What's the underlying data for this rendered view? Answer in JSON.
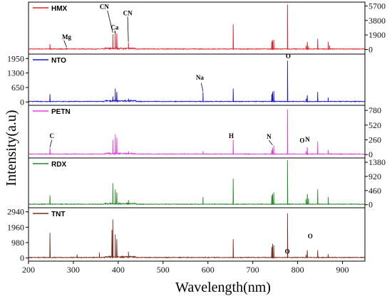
{
  "chart_data": {
    "type": "line",
    "x_label": "Wavelength(nm)",
    "y_label": "Intensity(a.u)",
    "x_range": [
      200,
      950
    ],
    "x_ticks": [
      200,
      300,
      400,
      500,
      600,
      700,
      800,
      900
    ],
    "grid": false,
    "panels": [
      {
        "name": "HMX",
        "color": "#e8202a",
        "y_range": [
          -600,
          6200
        ],
        "y_ticks": [
          0,
          1900,
          3800,
          5700
        ],
        "tick_side": "right",
        "annotations": [
          {
            "text": "Mg",
            "x": 285,
            "y": 1350
          },
          {
            "text": "CN",
            "x": 369,
            "y": 5300
          },
          {
            "text": "Ca",
            "x": 392,
            "y": 2600
          },
          {
            "text": "CN",
            "x": 421,
            "y": 4500
          }
        ],
        "peaks": [
          [
            247.8,
            700
          ],
          [
            285.2,
            200
          ],
          [
            388,
            2000
          ],
          [
            393.4,
            2500
          ],
          [
            396.8,
            2100
          ],
          [
            422.7,
            900
          ],
          [
            656.3,
            3300
          ],
          [
            742.4,
            1100
          ],
          [
            744.2,
            1200
          ],
          [
            746.8,
            1300
          ],
          [
            777.4,
            5900
          ],
          [
            818.8,
            500
          ],
          [
            821.6,
            1000
          ],
          [
            824.2,
            400
          ],
          [
            844.6,
            1400
          ],
          [
            868.0,
            1000
          ],
          [
            871.2,
            500
          ]
        ]
      },
      {
        "name": "NTO",
        "color": "#1818c8",
        "y_range": [
          -150,
          2150
        ],
        "y_ticks": [
          0,
          650,
          1300,
          1950
        ],
        "tick_side": "left",
        "annotations": [
          {
            "text": "Na",
            "x": 582,
            "y": 1000
          },
          {
            "text": "O",
            "x": 779,
            "y": 1960
          }
        ],
        "peaks": [
          [
            247.8,
            350
          ],
          [
            388,
            250
          ],
          [
            393.4,
            600
          ],
          [
            396.8,
            450
          ],
          [
            422.7,
            150
          ],
          [
            589.0,
            450
          ],
          [
            656.3,
            600
          ],
          [
            742.4,
            350
          ],
          [
            744.2,
            450
          ],
          [
            746.8,
            500
          ],
          [
            777.4,
            1850
          ],
          [
            818.8,
            150
          ],
          [
            821.6,
            300
          ],
          [
            844.6,
            450
          ],
          [
            868.0,
            200
          ]
        ]
      },
      {
        "name": "PETN",
        "color": "#e040d8",
        "y_range": [
          -60,
          870
        ],
        "y_ticks": [
          0,
          260,
          520,
          780
        ],
        "tick_side": "right",
        "annotations": [
          {
            "text": "C",
            "x": 252,
            "y": 290
          },
          {
            "text": "H",
            "x": 652,
            "y": 290
          },
          {
            "text": "N",
            "x": 736,
            "y": 280
          },
          {
            "text": "O",
            "x": 810,
            "y": 210
          },
          {
            "text": "N",
            "x": 822,
            "y": 230
          }
        ],
        "peaks": [
          [
            247.8,
            120
          ],
          [
            388,
            260
          ],
          [
            393.4,
            360
          ],
          [
            396.8,
            300
          ],
          [
            422.7,
            60
          ],
          [
            589.0,
            60
          ],
          [
            656.3,
            260
          ],
          [
            742.4,
            80
          ],
          [
            744.2,
            120
          ],
          [
            746.8,
            160
          ],
          [
            777.4,
            800
          ],
          [
            818.8,
            60
          ],
          [
            821.6,
            130
          ],
          [
            844.6,
            230
          ],
          [
            868.0,
            80
          ]
        ]
      },
      {
        "name": "RDX",
        "color": "#1e8a1e",
        "y_range": [
          -100,
          1520
        ],
        "y_ticks": [
          0,
          460,
          920,
          1380
        ],
        "tick_side": "right",
        "annotations": [],
        "peaks": [
          [
            247.8,
            300
          ],
          [
            388,
            700
          ],
          [
            393.4,
            500
          ],
          [
            396.8,
            400
          ],
          [
            422.7,
            150
          ],
          [
            589.0,
            250
          ],
          [
            656.3,
            850
          ],
          [
            742.4,
            300
          ],
          [
            744.2,
            350
          ],
          [
            746.8,
            400
          ],
          [
            777.4,
            1450
          ],
          [
            818.8,
            180
          ],
          [
            821.6,
            350
          ],
          [
            824.2,
            200
          ],
          [
            844.6,
            500
          ],
          [
            868.0,
            250
          ]
        ]
      },
      {
        "name": "TNT",
        "color": "#7a2a1a",
        "y_range": [
          -200,
          3200
        ],
        "y_ticks": [
          0,
          980,
          1960,
          2940
        ],
        "tick_side": "left",
        "annotations": [
          {
            "text": "O",
            "x": 777,
            "y": 270
          },
          {
            "text": "O",
            "x": 828,
            "y": 1250
          }
        ],
        "peaks": [
          [
            247.8,
            1600
          ],
          [
            308.2,
            220
          ],
          [
            358,
            350
          ],
          [
            386,
            1800
          ],
          [
            388,
            2450
          ],
          [
            393.4,
            1500
          ],
          [
            396.8,
            1200
          ],
          [
            422.7,
            400
          ],
          [
            656.3,
            1200
          ],
          [
            742.4,
            700
          ],
          [
            744.2,
            900
          ],
          [
            746.8,
            800
          ],
          [
            777.4,
            2850
          ],
          [
            818.8,
            200
          ],
          [
            821.6,
            500
          ],
          [
            844.6,
            500
          ],
          [
            868.0,
            250
          ]
        ]
      }
    ]
  }
}
